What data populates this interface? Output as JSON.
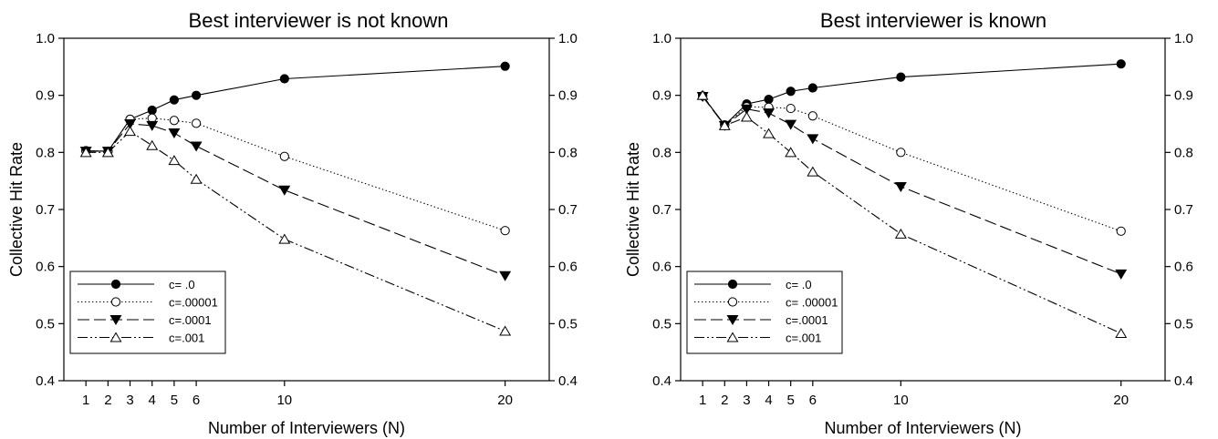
{
  "chart_data": [
    {
      "type": "line",
      "title": "Best interviewer is not known",
      "xlabel": "Number of Interviewers (N)",
      "ylabel": "Collective Hit Rate",
      "x": [
        1,
        2,
        3,
        4,
        5,
        6,
        10,
        20
      ],
      "x_ticks": [
        "1",
        "2",
        "3",
        "4",
        "5",
        "6",
        "10",
        "20"
      ],
      "y_ticks": [
        "0.4",
        "0.5",
        "0.6",
        "0.7",
        "0.8",
        "0.9",
        "1.0"
      ],
      "ylim": [
        0.4,
        1.0
      ],
      "right_axis_mirrors_left": true,
      "grid": false,
      "legend_position": "bottom-left",
      "series": [
        {
          "name": "c= .0",
          "marker": "filled-circle",
          "line": "solid",
          "values": [
            0.803,
            0.802,
            0.858,
            0.874,
            0.892,
            0.9,
            0.929,
            0.951
          ]
        },
        {
          "name": "c=.00001",
          "marker": "open-circle",
          "line": "dotted",
          "values": [
            0.803,
            0.802,
            0.858,
            0.86,
            0.856,
            0.851,
            0.793,
            0.663
          ]
        },
        {
          "name": "c=.0001",
          "marker": "filled-triangle-down",
          "line": "dashed",
          "values": [
            0.802,
            0.802,
            0.85,
            0.847,
            0.834,
            0.811,
            0.734,
            0.584
          ]
        },
        {
          "name": "c=.001",
          "marker": "open-triangle-up",
          "line": "dash-dot-dot",
          "values": [
            0.8,
            0.8,
            0.837,
            0.812,
            0.786,
            0.753,
            0.648,
            0.487
          ]
        }
      ]
    },
    {
      "type": "line",
      "title": "Best interviewer is known",
      "xlabel": "Number of Interviewers (N)",
      "ylabel": "Collective Hit Rate",
      "x": [
        1,
        2,
        3,
        4,
        5,
        6,
        10,
        20
      ],
      "x_ticks": [
        "1",
        "2",
        "3",
        "4",
        "5",
        "6",
        "10",
        "20"
      ],
      "y_ticks": [
        "0.4",
        "0.5",
        "0.6",
        "0.7",
        "0.8",
        "0.9",
        "1.0"
      ],
      "ylim": [
        0.4,
        1.0
      ],
      "right_axis_mirrors_left": true,
      "grid": false,
      "legend_position": "bottom-left",
      "series": [
        {
          "name": "c= .0",
          "marker": "filled-circle",
          "line": "solid",
          "values": [
            0.899,
            0.848,
            0.885,
            0.893,
            0.907,
            0.913,
            0.932,
            0.955
          ]
        },
        {
          "name": "c= .00001",
          "marker": "open-circle",
          "line": "dotted",
          "values": [
            0.899,
            0.848,
            0.88,
            0.879,
            0.877,
            0.864,
            0.8,
            0.662
          ]
        },
        {
          "name": "c=.0001",
          "marker": "filled-triangle-down",
          "line": "dashed",
          "values": [
            0.898,
            0.847,
            0.876,
            0.869,
            0.849,
            0.824,
            0.74,
            0.587
          ]
        },
        {
          "name": "c=.001",
          "marker": "open-triangle-up",
          "line": "dash-dot-dot",
          "values": [
            0.9,
            0.847,
            0.862,
            0.833,
            0.8,
            0.766,
            0.657,
            0.483
          ]
        }
      ]
    }
  ]
}
